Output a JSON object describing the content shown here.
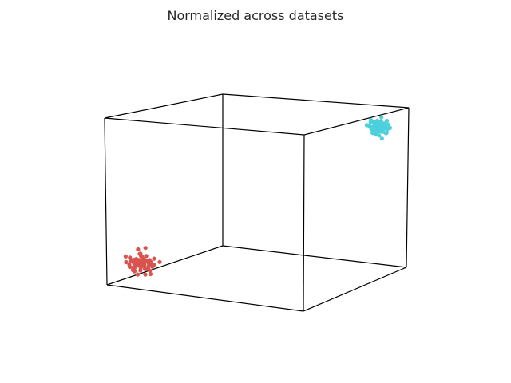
{
  "chart_data": {
    "type": "scatter",
    "title": "Normalized across datasets",
    "projection": "3d",
    "axes_visible": false,
    "box_visible": true,
    "xlim": [
      0,
      1
    ],
    "ylim": [
      0,
      1
    ],
    "zlim": [
      0,
      1
    ],
    "series": [
      {
        "color": "#d9534f",
        "points": [
          [
            0.08,
            0.1,
            0.12
          ],
          [
            0.12,
            0.05,
            0.14
          ],
          [
            0.15,
            0.12,
            0.08
          ],
          [
            0.1,
            0.15,
            0.1
          ],
          [
            0.05,
            0.08,
            0.16
          ],
          [
            0.18,
            0.1,
            0.12
          ],
          [
            0.13,
            0.02,
            0.1
          ],
          [
            0.09,
            0.12,
            0.2
          ],
          [
            0.11,
            0.08,
            0.06
          ],
          [
            0.16,
            0.14,
            0.15
          ],
          [
            0.07,
            0.11,
            0.09
          ],
          [
            0.14,
            0.06,
            0.18
          ],
          [
            0.12,
            0.1,
            0.13
          ],
          [
            0.1,
            0.04,
            0.15
          ],
          [
            0.17,
            0.09,
            0.07
          ],
          [
            0.06,
            0.13,
            0.13
          ],
          [
            0.13,
            0.16,
            0.11
          ],
          [
            0.11,
            0.12,
            0.16
          ],
          [
            0.15,
            0.07,
            0.12
          ],
          [
            0.09,
            0.09,
            0.11
          ],
          [
            0.2,
            0.12,
            0.14
          ],
          [
            0.04,
            0.1,
            0.12
          ],
          [
            0.12,
            0.13,
            0.05
          ],
          [
            0.14,
            0.1,
            0.22
          ],
          [
            0.08,
            0.06,
            0.12
          ],
          [
            0.1,
            0.11,
            0.14
          ],
          [
            0.16,
            0.08,
            0.1
          ],
          [
            0.12,
            0.07,
            0.13
          ],
          [
            0.13,
            0.11,
            0.09
          ],
          [
            0.09,
            0.14,
            0.17
          ],
          [
            0.11,
            0.09,
            0.12
          ],
          [
            0.15,
            0.13,
            0.13
          ],
          [
            0.07,
            0.08,
            0.1
          ],
          [
            0.12,
            0.12,
            0.11
          ],
          [
            0.1,
            0.07,
            0.08
          ],
          [
            0.14,
            0.15,
            0.12
          ],
          [
            0.06,
            0.1,
            0.15
          ],
          [
            0.18,
            0.06,
            0.14
          ],
          [
            0.11,
            0.14,
            0.1
          ],
          [
            0.13,
            0.09,
            0.16
          ],
          [
            0.12,
            0.11,
            0.15
          ],
          [
            0.1,
            0.13,
            0.13
          ],
          [
            0.15,
            0.11,
            0.11
          ],
          [
            0.08,
            0.12,
            0.14
          ],
          [
            0.12,
            0.09,
            0.1
          ],
          [
            0.14,
            0.12,
            0.09
          ],
          [
            0.09,
            0.1,
            0.13
          ],
          [
            0.11,
            0.11,
            0.12
          ],
          [
            0.13,
            0.12,
            0.14
          ],
          [
            0.1,
            0.09,
            0.11
          ],
          [
            0.12,
            0.14,
            0.16
          ],
          [
            0.16,
            0.1,
            0.15
          ],
          [
            0.08,
            0.09,
            0.08
          ],
          [
            0.11,
            0.06,
            0.11
          ],
          [
            0.14,
            0.09,
            0.13
          ],
          [
            0.09,
            0.15,
            0.12
          ],
          [
            0.13,
            0.07,
            0.09
          ],
          [
            0.1,
            0.12,
            0.1
          ],
          [
            0.12,
            0.08,
            0.14
          ],
          [
            0.15,
            0.14,
            0.1
          ],
          [
            0.07,
            0.12,
            0.11
          ],
          [
            0.17,
            0.12,
            0.12
          ],
          [
            0.11,
            0.1,
            0.18
          ],
          [
            0.12,
            0.12,
            0.12
          ],
          [
            0.1,
            0.1,
            0.14
          ],
          [
            0.13,
            0.1,
            0.12
          ],
          [
            0.11,
            0.13,
            0.13
          ],
          [
            0.14,
            0.11,
            0.14
          ]
        ]
      },
      {
        "color": "#4dd0dc",
        "points": [
          [
            0.9,
            0.88,
            0.9
          ],
          [
            0.87,
            0.92,
            0.86
          ],
          [
            0.93,
            0.86,
            0.92
          ],
          [
            0.88,
            0.9,
            0.84
          ],
          [
            0.94,
            0.91,
            0.88
          ],
          [
            0.85,
            0.87,
            0.9
          ],
          [
            0.91,
            0.95,
            0.87
          ],
          [
            0.89,
            0.85,
            0.93
          ],
          [
            0.92,
            0.89,
            0.82
          ],
          [
            0.86,
            0.93,
            0.91
          ],
          [
            0.9,
            0.91,
            0.89
          ],
          [
            0.95,
            0.88,
            0.86
          ],
          [
            0.88,
            0.86,
            0.88
          ],
          [
            0.91,
            0.9,
            0.95
          ],
          [
            0.87,
            0.89,
            0.85
          ],
          [
            0.93,
            0.93,
            0.9
          ],
          [
            0.89,
            0.92,
            0.88
          ],
          [
            0.92,
            0.87,
            0.89
          ],
          [
            0.86,
            0.9,
            0.87
          ],
          [
            0.9,
            0.86,
            0.91
          ],
          [
            0.94,
            0.9,
            0.93
          ],
          [
            0.88,
            0.94,
            0.89
          ],
          [
            0.91,
            0.88,
            0.84
          ],
          [
            0.87,
            0.87,
            0.92
          ],
          [
            0.93,
            0.92,
            0.87
          ],
          [
            0.89,
            0.89,
            0.9
          ],
          [
            0.9,
            0.93,
            0.86
          ],
          [
            0.92,
            0.91,
            0.91
          ],
          [
            0.86,
            0.88,
            0.89
          ],
          [
            0.91,
            0.86,
            0.88
          ],
          [
            0.88,
            0.91,
            0.92
          ],
          [
            0.94,
            0.87,
            0.89
          ],
          [
            0.9,
            0.89,
            0.87
          ],
          [
            0.87,
            0.92,
            0.9
          ],
          [
            0.92,
            0.9,
            0.86
          ],
          [
            0.89,
            0.87,
            0.91
          ],
          [
            0.91,
            0.92,
            0.88
          ],
          [
            0.88,
            0.88,
            0.86
          ],
          [
            0.93,
            0.89,
            0.9
          ],
          [
            0.9,
            0.9,
            0.92
          ],
          [
            0.86,
            0.91,
            0.88
          ],
          [
            0.92,
            0.88,
            0.93
          ],
          [
            0.89,
            0.93,
            0.87
          ],
          [
            0.91,
            0.89,
            0.89
          ],
          [
            0.87,
            0.86,
            0.9
          ],
          [
            0.9,
            0.92,
            0.9
          ],
          [
            0.93,
            0.91,
            0.85
          ],
          [
            0.88,
            0.89,
            0.89
          ],
          [
            0.91,
            0.91,
            0.91
          ],
          [
            0.89,
            0.9,
            0.88
          ],
          [
            0.92,
            0.86,
            0.87
          ],
          [
            0.9,
            0.88,
            0.93
          ],
          [
            0.87,
            0.9,
            0.91
          ],
          [
            0.94,
            0.93,
            0.88
          ],
          [
            0.88,
            0.92,
            0.87
          ],
          [
            0.91,
            0.87,
            0.92
          ],
          [
            0.89,
            0.88,
            0.91
          ],
          [
            0.92,
            0.92,
            0.89
          ],
          [
            0.9,
            0.87,
            0.86
          ],
          [
            0.86,
            0.89,
            0.93
          ],
          [
            0.93,
            0.88,
            0.88
          ],
          [
            0.89,
            0.91,
            0.9
          ],
          [
            0.91,
            0.9,
            0.86
          ],
          [
            0.88,
            0.87,
            0.89
          ],
          [
            0.92,
            0.89,
            0.91
          ],
          [
            0.9,
            0.91,
            0.87
          ],
          [
            0.87,
            0.88,
            0.88
          ],
          [
            0.91,
            0.93,
            0.9
          ]
        ]
      }
    ]
  }
}
